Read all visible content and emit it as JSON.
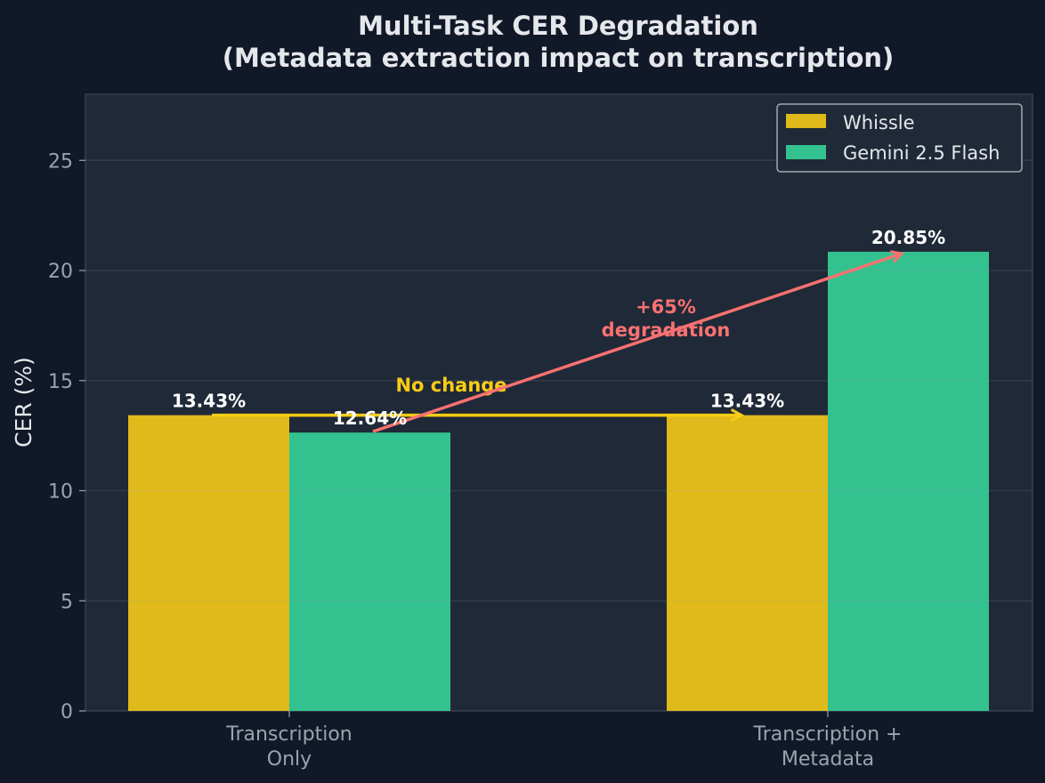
{
  "chart_data": {
    "type": "bar",
    "title": "Multi-Task CER Degradation",
    "subtitle": "(Metadata extraction impact on transcription)",
    "xlabel": "",
    "ylabel": "CER (%)",
    "categories": [
      "Transcription\nOnly",
      "Transcription +\nMetadata"
    ],
    "series": [
      {
        "name": "Whissle",
        "values": [
          13.43,
          13.43
        ],
        "color": "#e0b91a",
        "labels": [
          "13.43%",
          "13.43%"
        ]
      },
      {
        "name": "Gemini 2.5 Flash",
        "values": [
          12.64,
          20.85
        ],
        "color": "#33c28f",
        "labels": [
          "12.64%",
          "20.85%"
        ]
      }
    ],
    "ylim": [
      0,
      28
    ],
    "yticks": [
      0,
      5,
      10,
      15,
      20,
      25
    ],
    "grid": true,
    "legend": "top-right",
    "annotations": [
      {
        "text": "No change",
        "color": "#facc15",
        "from": {
          "category": 0,
          "value": 13.43
        },
        "to": {
          "category": 1,
          "value": 13.43
        }
      },
      {
        "text": "+65%\ndegradation",
        "color": "#f87171",
        "from": {
          "category": 0,
          "series": 1,
          "value": 12.64
        },
        "to": {
          "category": 1,
          "series": 1,
          "value": 20.85
        }
      }
    ]
  },
  "colors": {
    "background": "#111827",
    "plot": "#1f2937",
    "text": "#e5e7eb",
    "tick": "#9ca3af"
  }
}
